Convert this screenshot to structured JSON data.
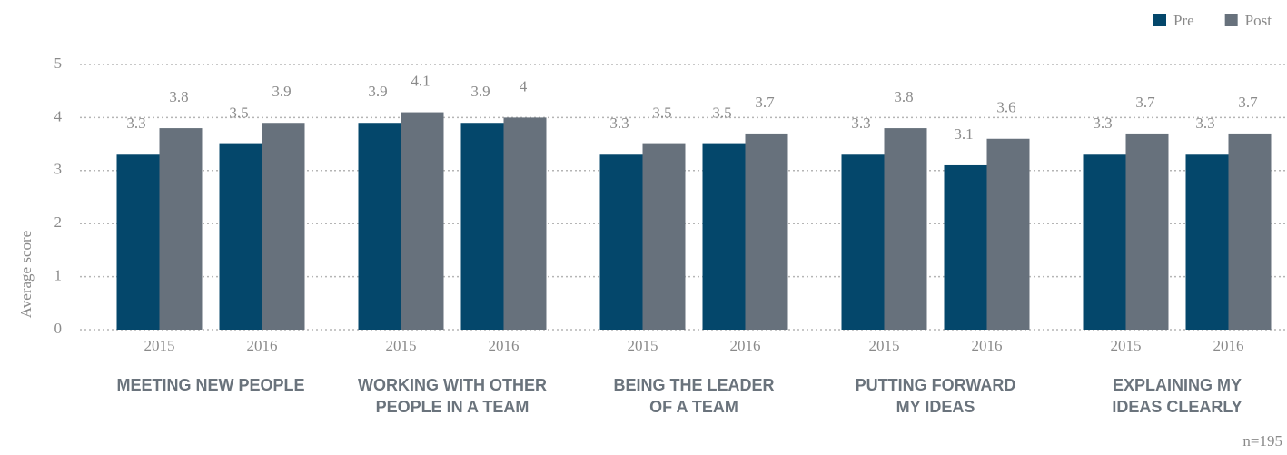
{
  "chart_data": {
    "type": "bar",
    "y_label": "Average score",
    "categories": [
      "2015",
      "2016",
      "2015",
      "2016",
      "2015",
      "2016",
      "2015",
      "2016",
      "2015",
      "2016"
    ],
    "groups": [
      [
        "MEETING NEW PEOPLE"
      ],
      [
        "WORKING WITH OTHER",
        "PEOPLE IN A TEAM"
      ],
      [
        "BEING THE LEADER",
        "OF A TEAM"
      ],
      [
        "PUTTING FORWARD",
        "MY IDEAS"
      ],
      [
        "EXPLAINING MY",
        "IDEAS CLEARLY"
      ]
    ],
    "series": [
      {
        "name": "Pre",
        "color": "#04476b",
        "values": [
          3.3,
          3.5,
          3.9,
          3.9,
          3.3,
          3.5,
          3.3,
          3.1,
          3.3,
          3.3
        ]
      },
      {
        "name": "Post",
        "color": "#67717c",
        "values": [
          3.8,
          3.9,
          4.1,
          4,
          3.5,
          3.7,
          3.8,
          3.6,
          3.7,
          3.7
        ]
      }
    ],
    "ylim": [
      0,
      5
    ],
    "yticks": [
      0,
      1,
      2,
      3,
      4,
      5
    ],
    "grid": true,
    "legend": "top-right",
    "note": "n=195"
  }
}
